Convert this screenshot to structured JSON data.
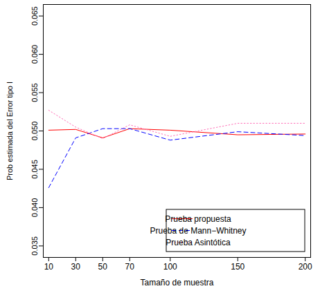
{
  "chart_data": {
    "type": "line",
    "x_label": "Tamaño de muestra",
    "y_label": "Prob estimada del Error tipo I",
    "x": [
      10,
      30,
      50,
      70,
      100,
      150,
      200
    ],
    "xlim": [
      6,
      204
    ],
    "xticks": [
      10,
      30,
      50,
      70,
      100,
      150,
      200
    ],
    "ylim": [
      0.0335,
      0.0665
    ],
    "yticks": [
      0.035,
      0.04,
      0.045,
      0.05,
      0.055,
      0.06,
      0.065
    ],
    "legend": "bottom-right",
    "grid": false,
    "series": [
      {
        "name": "Prueba propuesta",
        "color": "#ff0000",
        "line_style": "solid",
        "values": [
          0.0501,
          0.0502,
          0.0491,
          0.0503,
          0.0501,
          0.0495,
          0.0496
        ]
      },
      {
        "name": "Prueba de Mann−Whitney",
        "color": "#0000ff",
        "line_style": "dashed",
        "values": [
          0.0426,
          0.0491,
          0.0503,
          0.0503,
          0.0488,
          0.0499,
          0.0494
        ]
      },
      {
        "name": "Prueba Asintótica",
        "color": "#ff69b4",
        "line_style": "dotted",
        "values": [
          0.0527,
          0.0505,
          0.049,
          0.0508,
          0.0493,
          0.051,
          0.051
        ]
      }
    ]
  }
}
